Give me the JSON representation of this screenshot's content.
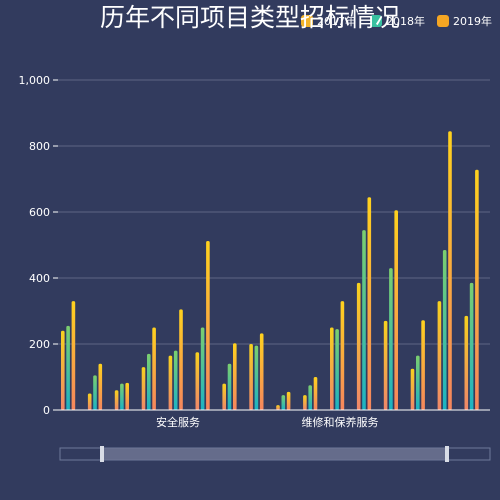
{
  "chart_data": {
    "type": "bar",
    "title": "历年不同项目类型招标情况",
    "categories_labeled": [
      "安全服务",
      "维修和保养服务"
    ],
    "yticks": [
      "0",
      "200",
      "400",
      "600",
      "800",
      "1,000"
    ],
    "ylim": [
      0,
      1000
    ],
    "grid": true,
    "legend_position": "top-right",
    "series": [
      {
        "name": "2017年",
        "color_top": "#f7d21e",
        "color_bottom": "#f0866a",
        "values": [
          240,
          50,
          60,
          130,
          165,
          175,
          80,
          200,
          15,
          45,
          250,
          385,
          270,
          125,
          330,
          285
        ]
      },
      {
        "name": "2018年",
        "color_top": "#7ccf6e",
        "color_bottom": "#1bb3c4",
        "values": [
          255,
          105,
          80,
          170,
          180,
          250,
          140,
          195,
          45,
          75,
          245,
          545,
          430,
          165,
          485,
          385
        ]
      },
      {
        "name": "2019年",
        "color_top": "#ffd21e",
        "color_bottom": "#f5855e",
        "values": [
          330,
          140,
          82,
          250,
          305,
          512,
          202,
          232,
          55,
          100,
          330,
          645,
          605,
          272,
          845,
          728
        ]
      }
    ]
  },
  "legend": [
    {
      "label": "2017年",
      "color": "#f2b32a"
    },
    {
      "label": "2018年",
      "color": "#39c1a0"
    },
    {
      "label": "2019年",
      "color": "#f5a623"
    }
  ]
}
